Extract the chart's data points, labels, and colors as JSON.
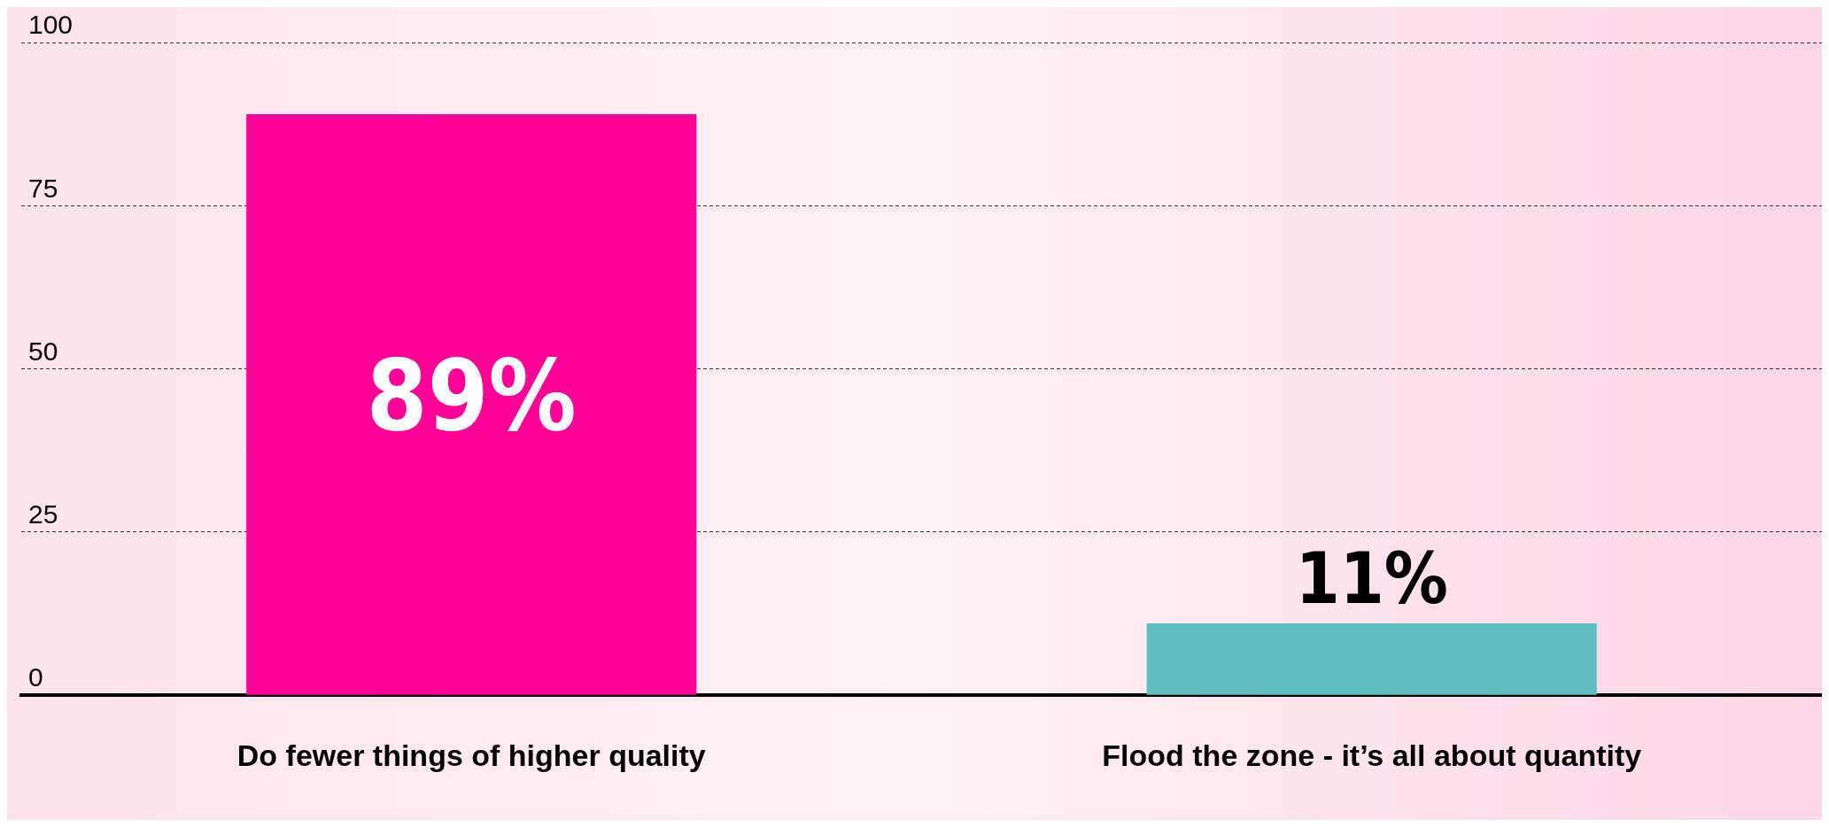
{
  "chart_data": {
    "type": "bar",
    "categories": [
      "Do fewer things of higher quality",
      "Flood the zone - it’s all about quantity"
    ],
    "values": [
      89,
      11
    ],
    "colors": [
      "#ff0096",
      "#5fbfc2"
    ],
    "value_labels": [
      "89%",
      "11%"
    ],
    "ylim": [
      0,
      100
    ],
    "yticks": [
      0,
      25,
      50,
      75,
      100
    ],
    "grid": "y",
    "legend": false
  }
}
